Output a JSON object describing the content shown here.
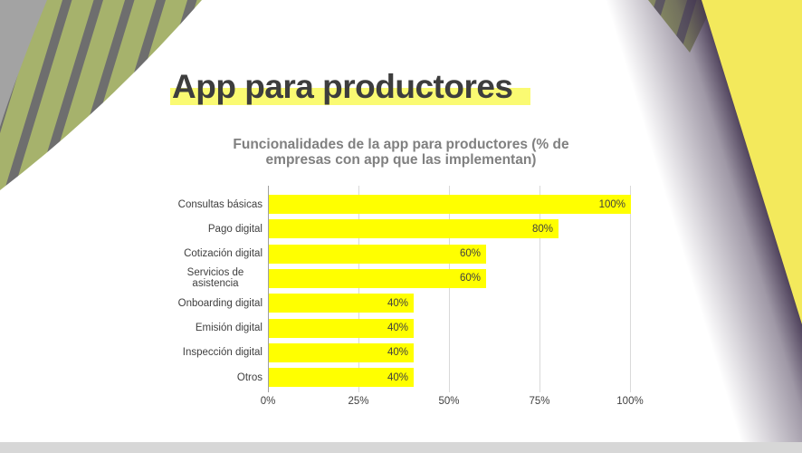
{
  "slide": {
    "title": "App para productores"
  },
  "chart_data": {
    "type": "bar",
    "orientation": "horizontal",
    "title_lines": [
      "Funcionalidades de la app para productores (% de",
      "empresas con app que las implementan)"
    ],
    "categories": [
      "Consultas básicas",
      "Pago digital",
      "Cotización digital",
      "Servicios de asistencia",
      "Onboarding digital",
      "Emisión digital",
      "Inspección digital",
      "Otros"
    ],
    "values": [
      100,
      80,
      60,
      60,
      40,
      40,
      40,
      40
    ],
    "value_labels": [
      "100%",
      "80%",
      "60%",
      "60%",
      "40%",
      "40%",
      "40%",
      "40%"
    ],
    "x_ticks": [
      "0%",
      "25%",
      "50%",
      "75%",
      "100%"
    ],
    "xlim": [
      0,
      100
    ],
    "grid": true,
    "legend": false,
    "bar_color": "#ffff00"
  },
  "colors": {
    "bar": "#ffff00",
    "band_yellow": "#f3e95c",
    "underline_yellow": "#fafa72",
    "olive": "#a6b26c",
    "stripe_dark": "#6e6e6e",
    "corner_gray": "#a3a3a3",
    "grid_line": "#d9d9d9",
    "axis_line": "#a0a0a0",
    "title_text": "#3d3d3d",
    "chart_title_text": "#808080",
    "label_text": "#3f3f3f",
    "bottom_strip": "#d7d7d7",
    "shadow": "#40324e"
  }
}
